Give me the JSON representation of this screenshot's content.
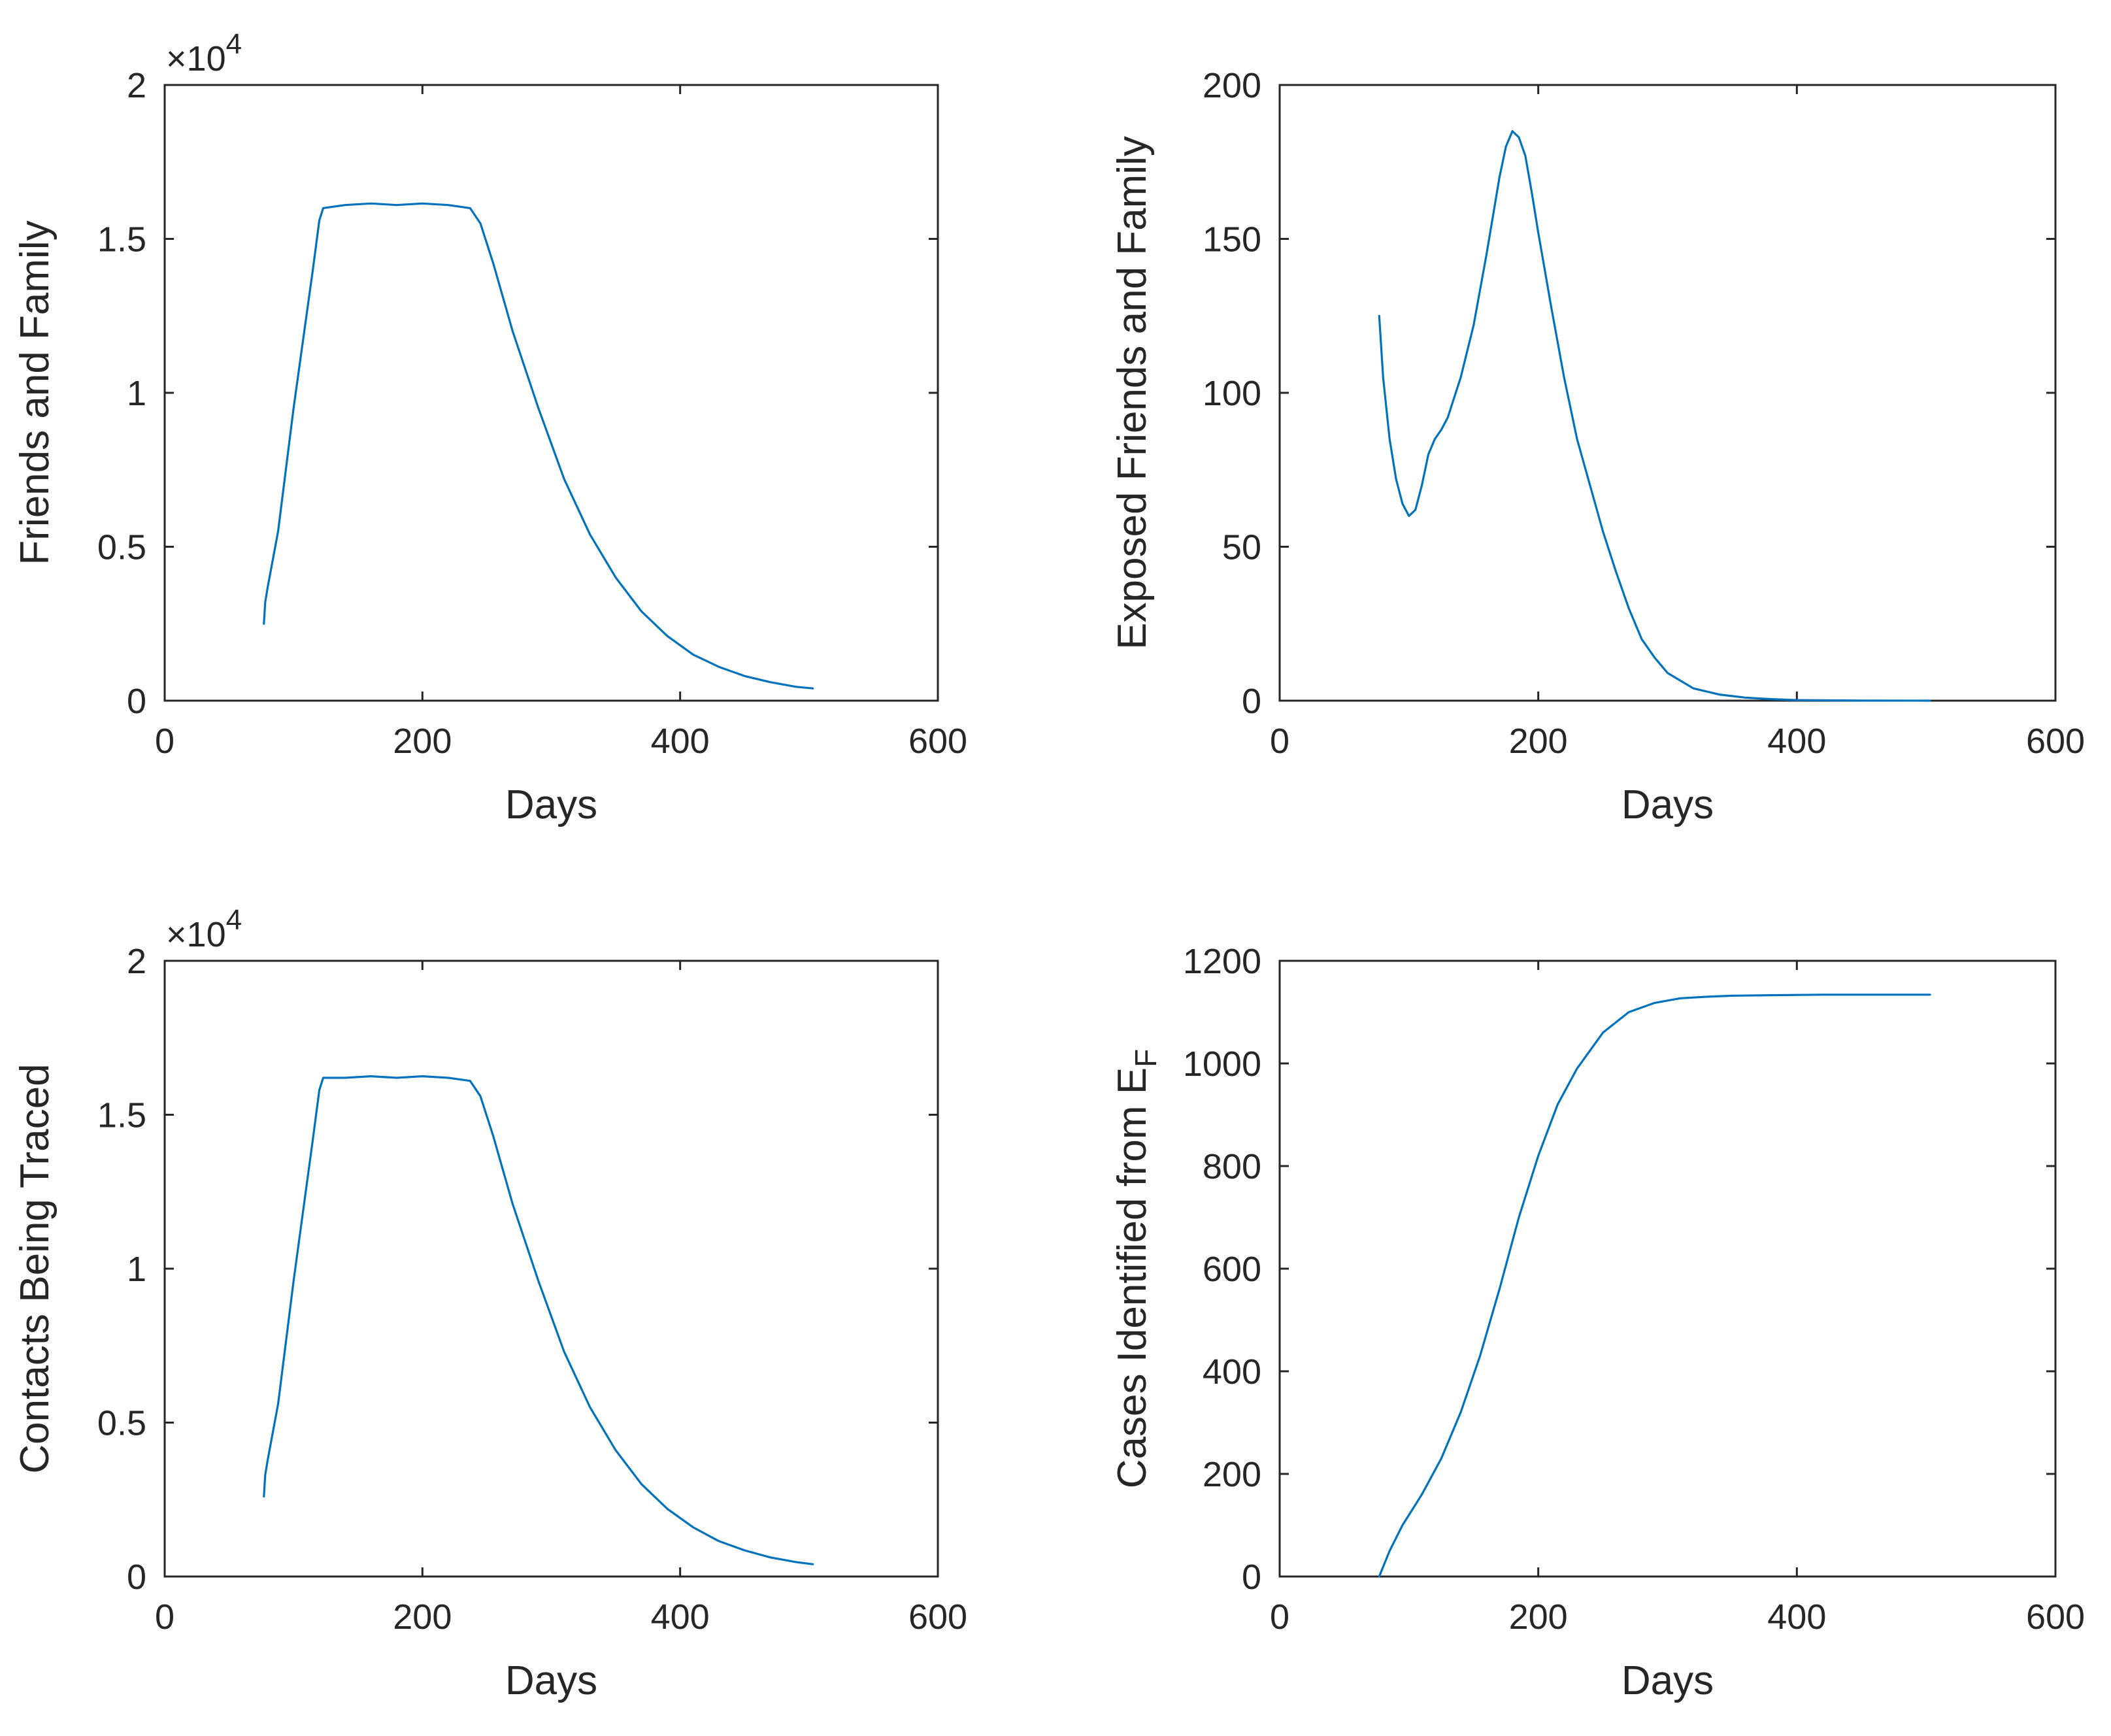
{
  "colors": {
    "series": "#0072BD",
    "axes": "#262626",
    "background": "#ffffff"
  },
  "chart_data": [
    {
      "type": "line",
      "id": "friends-family",
      "xlabel": "Days",
      "ylabel": "Friends and Family",
      "exponent_label": "×10",
      "exponent_power": "4",
      "xlim": [
        0,
        600
      ],
      "ylim": [
        0,
        2
      ],
      "xticks": [
        "0",
        "200",
        "400",
        "600"
      ],
      "yticks": [
        "0",
        "0.5",
        "1",
        "1.5",
        "2"
      ],
      "series": [
        {
          "name": "Friends and Family",
          "x": [
            77,
            78,
            80,
            88,
            100,
            115,
            120,
            123,
            140,
            160,
            180,
            200,
            220,
            237,
            245,
            255,
            270,
            290,
            310,
            330,
            350,
            370,
            390,
            410,
            430,
            450,
            470,
            490,
            503
          ],
          "y": [
            0.25,
            0.32,
            0.37,
            0.55,
            0.95,
            1.4,
            1.56,
            1.6,
            1.61,
            1.615,
            1.61,
            1.615,
            1.61,
            1.6,
            1.55,
            1.42,
            1.2,
            0.95,
            0.72,
            0.54,
            0.4,
            0.29,
            0.21,
            0.15,
            0.11,
            0.08,
            0.06,
            0.045,
            0.04
          ]
        }
      ]
    },
    {
      "type": "line",
      "id": "exposed-friends-family",
      "xlabel": "Days",
      "ylabel": "Exposed Friends and Family",
      "xlim": [
        0,
        600
      ],
      "ylim": [
        0,
        200
      ],
      "xticks": [
        "0",
        "200",
        "400",
        "600"
      ],
      "yticks": [
        "0",
        "50",
        "100",
        "150",
        "200"
      ],
      "series": [
        {
          "name": "Exposed Friends and Family",
          "x": [
            77,
            80,
            85,
            90,
            95,
            100,
            105,
            110,
            115,
            120,
            125,
            130,
            140,
            150,
            160,
            170,
            175,
            180,
            185,
            190,
            195,
            200,
            210,
            220,
            230,
            240,
            250,
            260,
            270,
            280,
            290,
            300,
            320,
            340,
            360,
            380,
            400,
            450,
            503
          ],
          "y": [
            125,
            105,
            85,
            72,
            64,
            60,
            62,
            70,
            80,
            85,
            88,
            92,
            105,
            122,
            145,
            170,
            180,
            185,
            183,
            177,
            165,
            152,
            128,
            105,
            85,
            70,
            55,
            42,
            30,
            20,
            14,
            9,
            4,
            2,
            1,
            0.5,
            0.2,
            0.05,
            0
          ]
        }
      ]
    },
    {
      "type": "line",
      "id": "contacts-traced",
      "xlabel": "Days",
      "ylabel": "Contacts Being Traced",
      "exponent_label": "×10",
      "exponent_power": "4",
      "xlim": [
        0,
        600
      ],
      "ylim": [
        0,
        2
      ],
      "xticks": [
        "0",
        "200",
        "400",
        "600"
      ],
      "yticks": [
        "0",
        "0.5",
        "1",
        "1.5",
        "2"
      ],
      "series": [
        {
          "name": "Contacts Being Traced",
          "x": [
            77,
            78,
            80,
            88,
            100,
            115,
            120,
            123,
            140,
            160,
            180,
            200,
            220,
            237,
            245,
            255,
            270,
            290,
            310,
            330,
            350,
            370,
            390,
            410,
            430,
            450,
            470,
            490,
            503
          ],
          "y": [
            0.26,
            0.33,
            0.38,
            0.56,
            0.96,
            1.42,
            1.58,
            1.62,
            1.62,
            1.625,
            1.62,
            1.625,
            1.62,
            1.61,
            1.56,
            1.43,
            1.21,
            0.96,
            0.73,
            0.55,
            0.41,
            0.3,
            0.22,
            0.16,
            0.115,
            0.085,
            0.062,
            0.047,
            0.04
          ]
        }
      ]
    },
    {
      "type": "line",
      "id": "cases-identified",
      "xlabel": "Days",
      "ylabel": "Cases Identified from E",
      "ylabel_subscript": "F",
      "xlim": [
        0,
        600
      ],
      "ylim": [
        0,
        1200
      ],
      "xticks": [
        "0",
        "200",
        "400",
        "600"
      ],
      "yticks": [
        "0",
        "200",
        "400",
        "600",
        "800",
        "1000",
        "1200"
      ],
      "series": [
        {
          "name": "Cases Identified from E_F",
          "x": [
            77,
            85,
            95,
            110,
            125,
            140,
            155,
            170,
            185,
            200,
            215,
            230,
            250,
            270,
            290,
            310,
            330,
            350,
            380,
            420,
            460,
            503
          ],
          "y": [
            0,
            50,
            100,
            160,
            230,
            320,
            430,
            560,
            700,
            820,
            920,
            990,
            1060,
            1100,
            1118,
            1127,
            1130,
            1132,
            1133,
            1134,
            1134,
            1134
          ]
        }
      ]
    }
  ]
}
